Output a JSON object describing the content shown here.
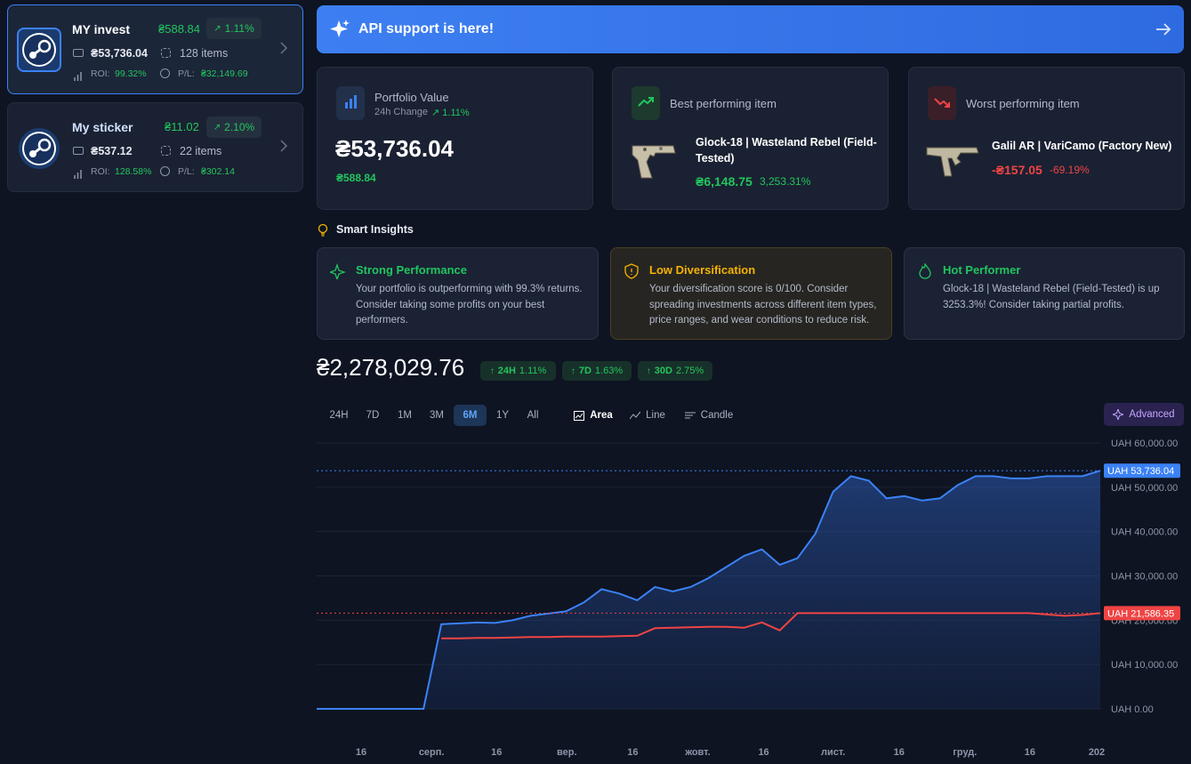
{
  "sidebar": {
    "portfolios": [
      {
        "name": "MY invest",
        "change": "₴588.84",
        "change_pct": "1.11%",
        "value": "₴53,736.04",
        "items": "128 items",
        "roi_label": "ROI:",
        "roi": "99.32%",
        "pl_label": "P/L:",
        "pl": "₴32,149.69"
      },
      {
        "name": "My sticker",
        "change": "₴11.02",
        "change_pct": "2.10%",
        "value": "₴537.12",
        "items": "22 items",
        "roi_label": "ROI:",
        "roi": "128.58%",
        "pl_label": "P/L:",
        "pl": "₴302.14"
      }
    ]
  },
  "banner": {
    "text": "API support is here!"
  },
  "stats": {
    "portfolio": {
      "title": "Portfolio Value",
      "subtitle": "24h Change",
      "change_pct": "1.11%",
      "value": "₴53,736.04",
      "change": "₴588.84"
    },
    "best": {
      "title": "Best performing item",
      "item": "Glock-18 | Wasteland Rebel (Field-Tested)",
      "price": "₴6,148.75",
      "pct": "3,253.31%"
    },
    "worst": {
      "title": "Worst performing item",
      "item": "Galil AR | VariCamo (Factory New)",
      "price": "-₴157.05",
      "pct": "-69.19%"
    }
  },
  "insights": {
    "title": "Smart Insights",
    "cards": [
      {
        "title": "Strong Performance",
        "text": "Your portfolio is outperforming with 99.3% returns. Consider taking some profits on your best performers."
      },
      {
        "title": "Low Diversification",
        "text": "Your diversification score is 0/100. Consider spreading investments across different item types, price ranges, and wear conditions to reduce risk."
      },
      {
        "title": "Hot Performer",
        "text": "Glock-18 | Wasteland Rebel (Field-Tested) is up 3253.3%! Consider taking partial profits."
      }
    ]
  },
  "summary": {
    "total": "₴2,278,029.76",
    "changes": [
      {
        "period": "24H",
        "pct": "1.11%"
      },
      {
        "period": "7D",
        "pct": "1.63%"
      },
      {
        "period": "30D",
        "pct": "2.75%"
      }
    ]
  },
  "controls": {
    "ranges": [
      "24H",
      "7D",
      "1M",
      "3M",
      "6M",
      "1Y",
      "All"
    ],
    "active_range": 4,
    "chart_types": [
      "Area",
      "Line",
      "Candle"
    ],
    "active_chart_type": 0,
    "advanced": "Advanced"
  },
  "chart": {
    "type": "area",
    "xlim": [
      0,
      44
    ],
    "xticks": [
      {
        "value": 2.5,
        "label": "16"
      },
      {
        "value": 6.45,
        "label": "серп."
      },
      {
        "value": 10.1,
        "label": "16"
      },
      {
        "value": 14.05,
        "label": "вер."
      },
      {
        "value": 17.75,
        "label": "16"
      },
      {
        "value": 21.4,
        "label": "жовт."
      },
      {
        "value": 25.1,
        "label": "16"
      },
      {
        "value": 29,
        "label": "лист."
      },
      {
        "value": 32.7,
        "label": "16"
      },
      {
        "value": 36.4,
        "label": "груд."
      },
      {
        "value": 40.05,
        "label": "16"
      },
      {
        "value": 43.8,
        "label": "202"
      }
    ],
    "ylim": [
      0,
      60000
    ],
    "yticks": [
      {
        "value": 0,
        "label": "UAH 0.00"
      },
      {
        "value": 10000,
        "label": "UAH 10,000.00"
      },
      {
        "value": 20000,
        "label": "UAH 20,000.00"
      },
      {
        "value": 30000,
        "label": "UAH 30,000.00"
      },
      {
        "value": 40000,
        "label": "UAH 40,000.00"
      },
      {
        "value": 50000,
        "label": "UAH 50,000.00"
      },
      {
        "value": 60000,
        "label": "UAH 60,000.00"
      }
    ],
    "grid": true,
    "series": [
      {
        "color": "#3b82f6",
        "fill": true,
        "last_label": "UAH 53,736.04",
        "values": [
          0,
          0,
          0,
          0,
          0,
          0,
          0,
          19100,
          19300,
          19500,
          19400,
          20000,
          21000,
          21500,
          22000,
          24000,
          27000,
          26000,
          24500,
          27500,
          26500,
          27500,
          29500,
          32000,
          34500,
          36000,
          32500,
          34000,
          39500,
          49000,
          52500,
          51500,
          47500,
          48000,
          47000,
          47500,
          50500,
          52500,
          52500,
          52000,
          52000,
          52500,
          52500,
          52500,
          53736.04
        ]
      },
      {
        "color": "#ef4444",
        "fill": false,
        "last_label": "UAH 21,586.35",
        "values": [
          null,
          null,
          null,
          null,
          null,
          null,
          null,
          15900,
          15900,
          16000,
          16000,
          16100,
          16200,
          16200,
          16300,
          16300,
          16300,
          16400,
          16500,
          18200,
          18300,
          18400,
          18500,
          18500,
          18300,
          19500,
          17700,
          21586.35,
          21586.35,
          21586.35,
          21586.35,
          21586.35,
          21586.35,
          21586.35,
          21586.35,
          21586.35,
          21586.35,
          21586.35,
          21586.35,
          21586.35,
          21586.35,
          21300,
          21000,
          21200,
          21586.35
        ]
      }
    ]
  }
}
